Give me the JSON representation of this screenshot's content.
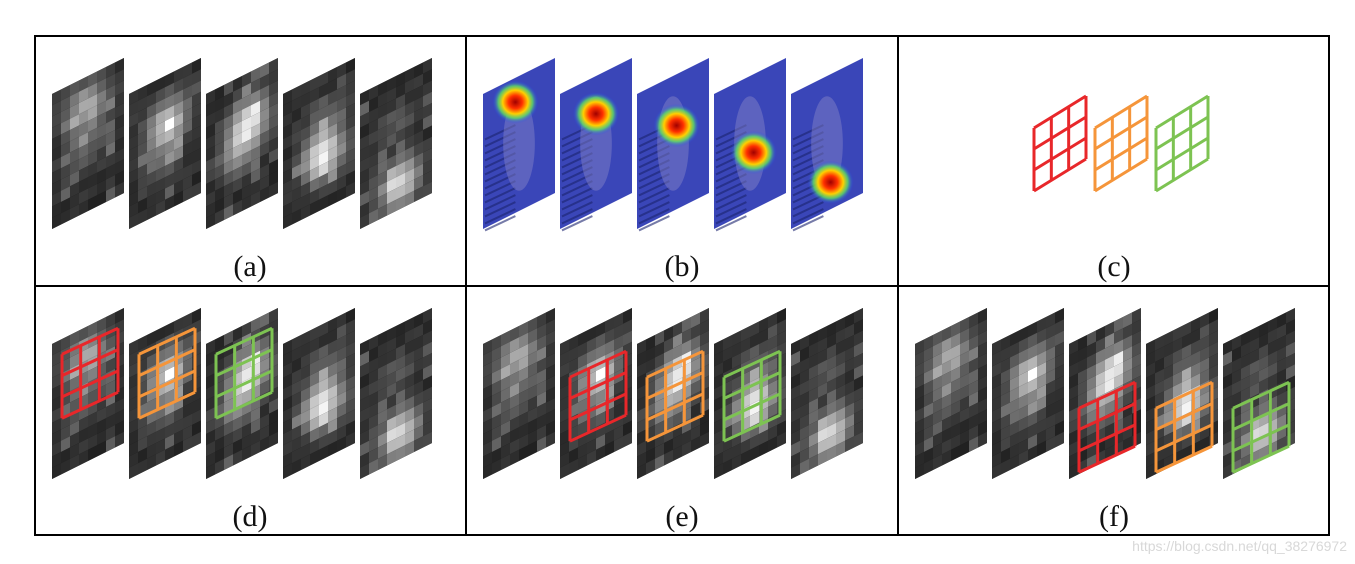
{
  "panels": [
    {
      "id": "a",
      "caption": "(a)",
      "content": "feature-maps",
      "highlight": [
        null,
        null,
        null,
        null,
        null
      ]
    },
    {
      "id": "b",
      "caption": "(b)",
      "content": "heatmaps-overlay",
      "highlight": [
        null,
        null,
        null,
        null,
        null
      ]
    },
    {
      "id": "c",
      "caption": "(c)",
      "content": "kernels",
      "highlight": []
    },
    {
      "id": "d",
      "caption": "(d)",
      "content": "feature-maps",
      "highlight": [
        "red",
        "orange",
        "green",
        null,
        null
      ]
    },
    {
      "id": "e",
      "caption": "(e)",
      "content": "feature-maps",
      "highlight": [
        null,
        "red",
        "orange",
        "green",
        null
      ]
    },
    {
      "id": "f",
      "caption": "(f)",
      "content": "feature-maps",
      "highlight": [
        null,
        null,
        "red",
        "orange",
        "green"
      ]
    }
  ],
  "kernel_colors": {
    "red": "#e8272a",
    "orange": "#f5953a",
    "green": "#7dc352"
  },
  "kernel_order": [
    "red",
    "orange",
    "green"
  ],
  "watermark": "https://blog.csdn.net/qq_38276972"
}
